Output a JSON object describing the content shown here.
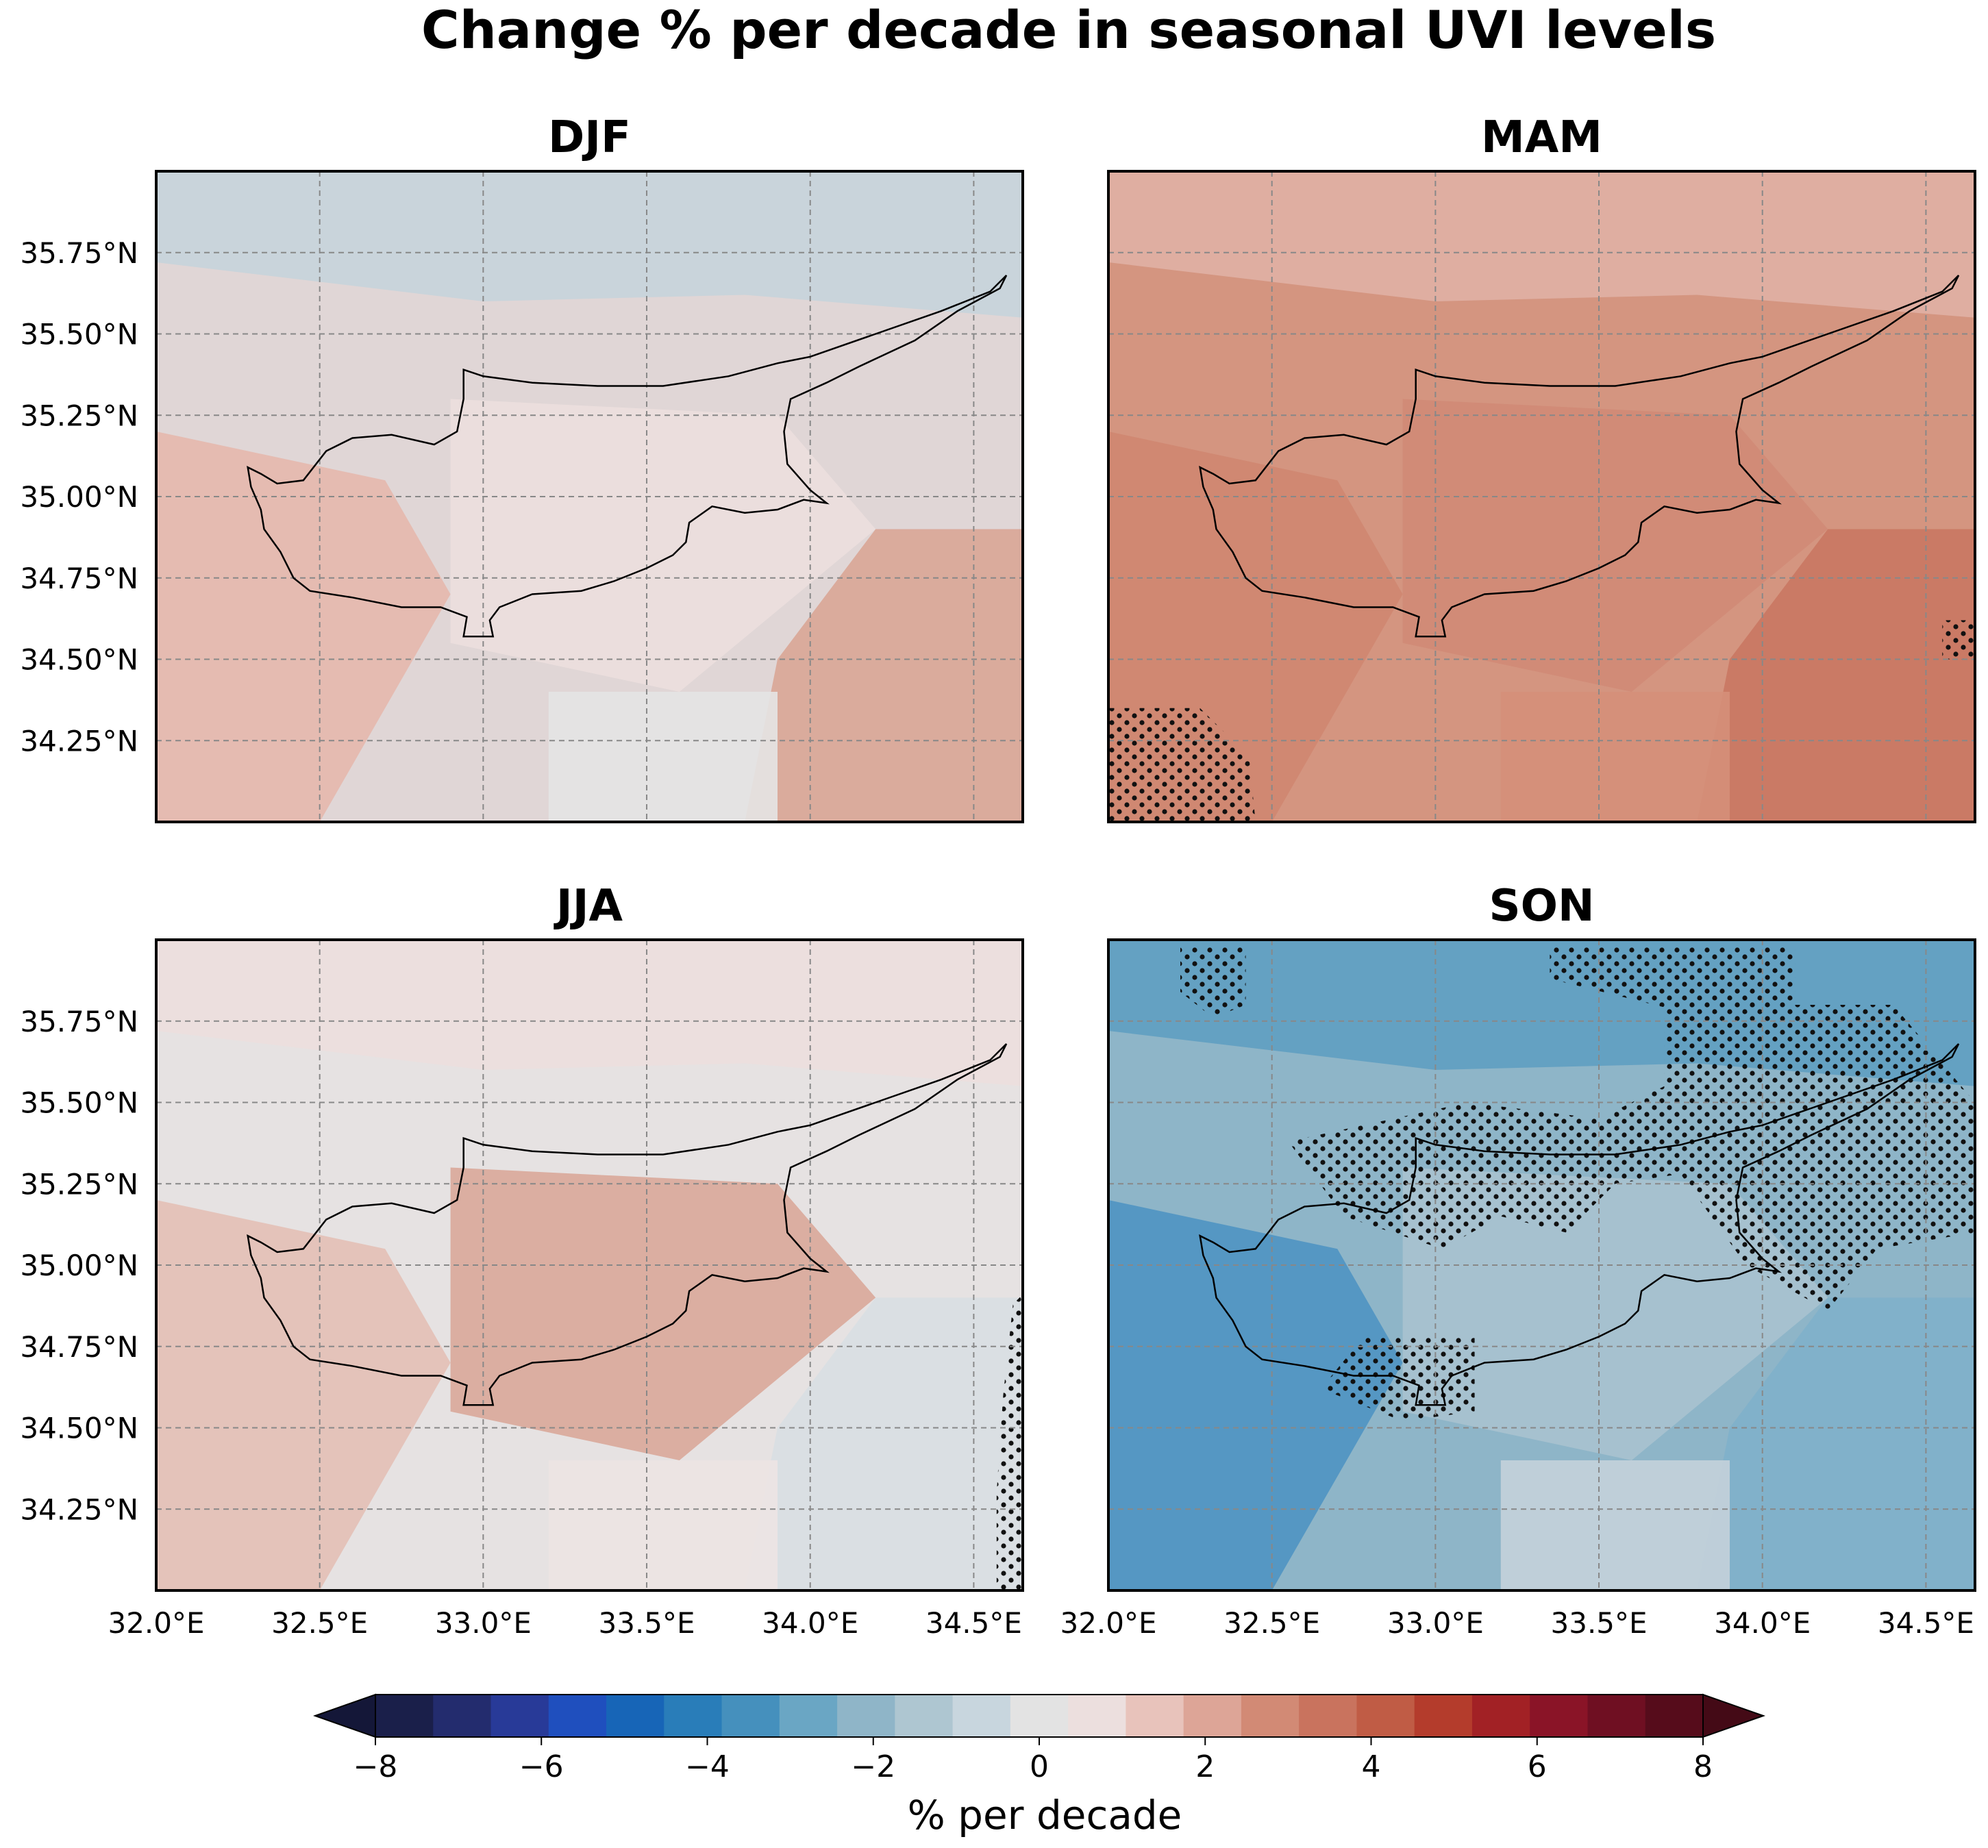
{
  "title": "Change % per decade in seasonal UVI levels",
  "panels": [
    {
      "label": "DJF",
      "fill": "#e0d6d6",
      "zones": [
        {
          "color": "#c7d4dc"
        },
        {
          "color": "#e6b8ad"
        },
        {
          "color": "#ecdfde"
        },
        {
          "color": "#d9a696"
        },
        {
          "color": "#e4e4e4"
        }
      ],
      "stippled": false
    },
    {
      "label": "MAM",
      "fill": "#d49580",
      "zones": [
        {
          "color": "#e0b0a4"
        },
        {
          "color": "#cf8670"
        },
        {
          "color": "#d08a76"
        },
        {
          "color": "#c97762"
        },
        {
          "color": "#d58f79"
        }
      ],
      "stippled": true
    },
    {
      "label": "JJA",
      "fill": "#e6e2e2",
      "zones": [
        {
          "color": "#ecdfde"
        },
        {
          "color": "#e3c0b6"
        },
        {
          "color": "#d9a99a"
        },
        {
          "color": "#d8dfe3"
        },
        {
          "color": "#ece4e3"
        }
      ],
      "stippled": true
    },
    {
      "label": "SON",
      "fill": "#8eb5c8",
      "zones": [
        {
          "color": "#5f9ec1"
        },
        {
          "color": "#4f93c2"
        },
        {
          "color": "#a9c2cf"
        },
        {
          "color": "#7fb0ca"
        },
        {
          "color": "#c4d2da"
        }
      ],
      "stippled": true
    }
  ],
  "axes": {
    "lat_ticks": [
      "35.75°N",
      "35.50°N",
      "35.25°N",
      "35.00°N",
      "34.75°N",
      "34.50°N",
      "34.25°N"
    ],
    "lon_ticks": [
      "32.0°E",
      "32.5°E",
      "33.0°E",
      "33.5°E",
      "34.0°E",
      "34.5°E"
    ],
    "lat_values": [
      35.75,
      35.5,
      35.25,
      35.0,
      34.75,
      34.5,
      34.25
    ],
    "lon_values": [
      32.0,
      32.5,
      33.0,
      33.5,
      34.0,
      34.5
    ],
    "lat_range": [
      34.0,
      36.0
    ],
    "lon_range": [
      32.0,
      34.65
    ]
  },
  "colorbar": {
    "label": "% per decade",
    "ticks": [
      "−8",
      "−6",
      "−4",
      "−2",
      "0",
      "2",
      "4",
      "6",
      "8"
    ],
    "range": [
      -8,
      8
    ],
    "extend": "both",
    "colors": [
      "#1a1f4a",
      "#232c6e",
      "#283a98",
      "#1f4fbe",
      "#1765b7",
      "#297db9",
      "#4590bd",
      "#6aa6c4",
      "#8fb5c8",
      "#aec6d1",
      "#c8d6de",
      "#e3e3e3",
      "#ecdfde",
      "#e8c3bb",
      "#dda597",
      "#d28a75",
      "#c9735e",
      "#c05c45",
      "#b43c2c",
      "#a22125",
      "#8a1427",
      "#6f0f22",
      "#560c1b"
    ],
    "extend_low_color": "#141738",
    "extend_high_color": "#440a16"
  }
}
